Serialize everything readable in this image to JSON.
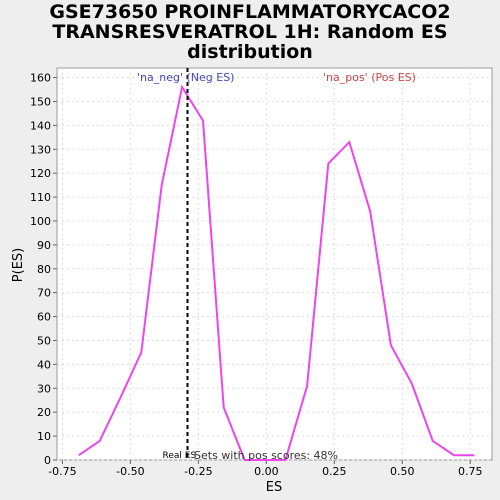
{
  "chart_data": {
    "type": "line",
    "title_lines": [
      "GSE73650 PROINFLAMMATORYCACO2",
      "TRANSRESVERATROL 1H: Random ES",
      "distribution"
    ],
    "xlabel": "ES",
    "ylabel": "P(ES)",
    "xlim": [
      -0.77,
      0.83
    ],
    "ylim": [
      0,
      164
    ],
    "x_ticks": [
      -0.75,
      -0.5,
      -0.25,
      0.0,
      0.25,
      0.5,
      0.75
    ],
    "x_tick_labels": [
      "-0.75",
      "-0.50",
      "-0.25",
      "0.00",
      "0.25",
      "0.50",
      "0.75"
    ],
    "y_ticks": [
      0,
      10,
      20,
      30,
      40,
      50,
      60,
      70,
      80,
      90,
      100,
      110,
      120,
      130,
      140,
      150,
      160
    ],
    "grid": true,
    "series": [
      {
        "color": "#ee44ee",
        "x": [
          -0.69,
          -0.613,
          -0.537,
          -0.46,
          -0.385,
          -0.31,
          -0.233,
          -0.157,
          -0.08,
          -0.005,
          0.07,
          0.15,
          0.228,
          0.305,
          0.382,
          0.458,
          0.535,
          0.612,
          0.69,
          0.765
        ],
        "y": [
          2,
          8,
          26,
          45,
          115,
          156,
          142,
          22,
          0,
          0,
          0,
          31,
          124,
          133,
          104,
          48,
          32,
          8,
          2,
          2
        ]
      }
    ],
    "real_es_line": {
      "x": -0.29,
      "label": "Real ES"
    },
    "annotations": {
      "neg": {
        "label": "'na_neg' (Neg ES)",
        "color": "#4444bb"
      },
      "pos": {
        "label": "'na_pos' (Pos ES)",
        "color": "#cc4444"
      },
      "sets_text": "Sets with pos scores: 48%"
    }
  }
}
